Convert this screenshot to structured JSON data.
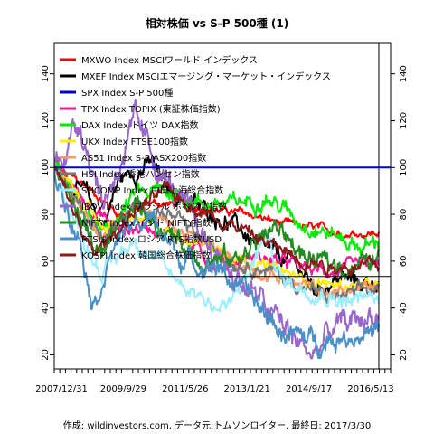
{
  "chart_data": {
    "type": "line",
    "title": "相対株価 vs S-P 500種 (1)",
    "caption": "作成: wildinvestors.com, データ元:トムソンロイター, 最終日: 2017/3/30",
    "xlabel": "",
    "ylabel": "",
    "x_tick_labels": [
      "2007/12/31",
      "2009/9/29",
      "2011/5/26",
      "2013/1/21",
      "2014/9/17",
      "2016/5/13"
    ],
    "y_ticks": [
      20,
      40,
      60,
      80,
      100,
      120,
      140
    ],
    "ylim": [
      14,
      153
    ],
    "grid": false,
    "legend_position": "top-left",
    "reference_lines": {
      "vertical_at_fraction_of_span": 0.965,
      "horizontal_spx": 100,
      "horizontal_other": 53.5
    },
    "series": [
      {
        "name": "MXWO Index MSCIワールド インデックス",
        "color": "#ff0000",
        "lw": 2,
        "start": 100,
        "keys": [
          [
            0,
            100
          ],
          [
            0.1,
            92
          ],
          [
            0.2,
            80
          ],
          [
            0.3,
            85
          ],
          [
            0.4,
            84
          ],
          [
            0.5,
            82
          ],
          [
            0.6,
            80
          ],
          [
            0.7,
            76
          ],
          [
            0.8,
            74
          ],
          [
            0.9,
            72
          ],
          [
            1,
            72
          ]
        ],
        "noise": 1.2
      },
      {
        "name": "MXEF Index MSCIエマージング・マーケット・インデックス",
        "color": "#000000",
        "lw": 2,
        "keys": [
          [
            0,
            100
          ],
          [
            0.1,
            88
          ],
          [
            0.15,
            75
          ],
          [
            0.2,
            95
          ],
          [
            0.3,
            102
          ],
          [
            0.35,
            90
          ],
          [
            0.45,
            83
          ],
          [
            0.55,
            76
          ],
          [
            0.65,
            64
          ],
          [
            0.75,
            58
          ],
          [
            0.8,
            48
          ],
          [
            0.88,
            53
          ],
          [
            0.95,
            50
          ],
          [
            1,
            52
          ]
        ],
        "noise": 2.5
      },
      {
        "name": "SPX Index S-P 500種",
        "color": "#0000cc",
        "lw": 2,
        "keys": [
          [
            0,
            100
          ],
          [
            1,
            100
          ]
        ],
        "noise": 0
      },
      {
        "name": "TPX Index TOPIX (東証株価指数)",
        "color": "#ff1493",
        "lw": 2,
        "keys": [
          [
            0,
            100
          ],
          [
            0.1,
            85
          ],
          [
            0.2,
            73
          ],
          [
            0.3,
            75
          ],
          [
            0.4,
            70
          ],
          [
            0.5,
            58
          ],
          [
            0.6,
            62
          ],
          [
            0.7,
            60
          ],
          [
            0.8,
            56
          ],
          [
            0.9,
            56
          ],
          [
            1,
            58
          ]
        ],
        "noise": 2
      },
      {
        "name": "DAX Index ドイツ DAX指数",
        "color": "#00ee00",
        "lw": 2,
        "keys": [
          [
            0,
            100
          ],
          [
            0.15,
            70
          ],
          [
            0.25,
            88
          ],
          [
            0.35,
            90
          ],
          [
            0.45,
            85
          ],
          [
            0.55,
            84
          ],
          [
            0.65,
            88
          ],
          [
            0.75,
            78
          ],
          [
            0.85,
            72
          ],
          [
            0.95,
            66
          ],
          [
            1,
            68
          ]
        ],
        "noise": 2.5
      },
      {
        "name": "UKX Index FTSE100指数",
        "color": "#ffee00",
        "lw": 2,
        "keys": [
          [
            0,
            100
          ],
          [
            0.15,
            75
          ],
          [
            0.25,
            78
          ],
          [
            0.35,
            73
          ],
          [
            0.45,
            68
          ],
          [
            0.55,
            63
          ],
          [
            0.65,
            58
          ],
          [
            0.75,
            53
          ],
          [
            0.85,
            50
          ],
          [
            1,
            49
          ]
        ],
        "noise": 1.5
      },
      {
        "name": "AS51 Index S-P/ASX200指数",
        "color": "#ff9966",
        "lw": 2,
        "keys": [
          [
            0,
            100
          ],
          [
            0.15,
            70
          ],
          [
            0.25,
            85
          ],
          [
            0.35,
            76
          ],
          [
            0.45,
            68
          ],
          [
            0.55,
            60
          ],
          [
            0.65,
            55
          ],
          [
            0.75,
            50
          ],
          [
            0.85,
            46
          ],
          [
            1,
            50
          ]
        ],
        "noise": 1.8
      },
      {
        "name": "HSI Index 香港ハンセン指数",
        "color": "#777777",
        "lw": 2,
        "keys": [
          [
            0,
            100
          ],
          [
            0.15,
            70
          ],
          [
            0.25,
            83
          ],
          [
            0.35,
            80
          ],
          [
            0.45,
            70
          ],
          [
            0.55,
            60
          ],
          [
            0.65,
            57
          ],
          [
            0.75,
            50
          ],
          [
            0.85,
            44
          ],
          [
            1,
            48
          ]
        ],
        "noise": 2
      },
      {
        "name": "SHCOMP Index 中国上海総合指数",
        "color": "#99eeff",
        "lw": 2,
        "keys": [
          [
            0,
            100
          ],
          [
            0.08,
            72
          ],
          [
            0.15,
            55
          ],
          [
            0.25,
            70
          ],
          [
            0.35,
            55
          ],
          [
            0.45,
            46
          ],
          [
            0.5,
            40
          ],
          [
            0.55,
            42
          ],
          [
            0.6,
            55
          ],
          [
            0.65,
            72
          ],
          [
            0.7,
            52
          ],
          [
            0.8,
            48
          ],
          [
            0.9,
            43
          ],
          [
            1,
            44
          ]
        ],
        "noise": 2.5
      },
      {
        "name": "IBOV Index ブラジル ボベスパ指数",
        "color": "#9966cc",
        "lw": 2,
        "keys": [
          [
            0,
            100
          ],
          [
            0.08,
            120
          ],
          [
            0.15,
            85
          ],
          [
            0.25,
            118
          ],
          [
            0.3,
            105
          ],
          [
            0.4,
            82
          ],
          [
            0.5,
            62
          ],
          [
            0.6,
            48
          ],
          [
            0.7,
            33
          ],
          [
            0.75,
            25
          ],
          [
            0.8,
            20
          ],
          [
            0.85,
            30
          ],
          [
            0.9,
            33
          ],
          [
            1,
            38
          ]
        ],
        "noise": 4
      },
      {
        "name": "NIFTY Index インド NIFTY指数",
        "color": "#228b22",
        "lw": 2,
        "keys": [
          [
            0,
            100
          ],
          [
            0.15,
            60
          ],
          [
            0.25,
            85
          ],
          [
            0.35,
            72
          ],
          [
            0.45,
            62
          ],
          [
            0.55,
            60
          ],
          [
            0.65,
            72
          ],
          [
            0.7,
            74
          ],
          [
            0.78,
            60
          ],
          [
            0.88,
            58
          ],
          [
            1,
            60
          ]
        ],
        "noise": 3
      },
      {
        "name": "RTSI$ Index ロシア RTS指数USD",
        "color": "#4a90c8",
        "lw": 2,
        "keys": [
          [
            0,
            100
          ],
          [
            0.08,
            70
          ],
          [
            0.12,
            42
          ],
          [
            0.2,
            72
          ],
          [
            0.3,
            78
          ],
          [
            0.4,
            60
          ],
          [
            0.5,
            58
          ],
          [
            0.6,
            45
          ],
          [
            0.7,
            30
          ],
          [
            0.8,
            26
          ],
          [
            0.9,
            28
          ],
          [
            1,
            31
          ]
        ],
        "noise": 3
      },
      {
        "name": "KOSPI Index 韓国総合株価指数",
        "color": "#8b1a1a",
        "lw": 2,
        "keys": [
          [
            0,
            100
          ],
          [
            0.12,
            62
          ],
          [
            0.25,
            82
          ],
          [
            0.35,
            90
          ],
          [
            0.45,
            82
          ],
          [
            0.55,
            76
          ],
          [
            0.65,
            68
          ],
          [
            0.75,
            62
          ],
          [
            0.85,
            58
          ],
          [
            1,
            58
          ]
        ],
        "noise": 2
      }
    ]
  }
}
